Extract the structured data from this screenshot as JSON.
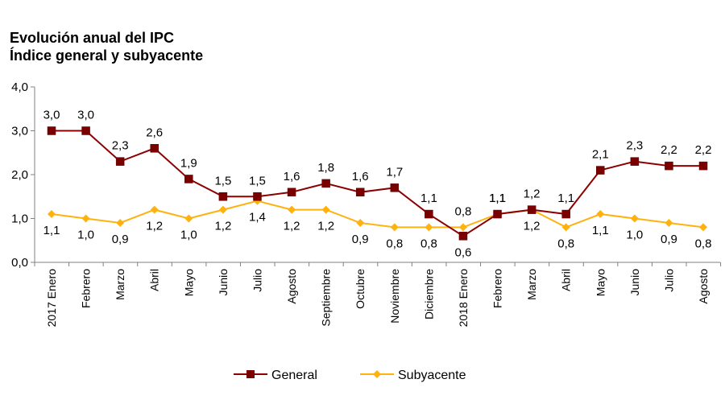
{
  "title": {
    "line1": "Evolución anual del IPC",
    "line2": "Índice general y subyacente"
  },
  "chart_data": {
    "type": "line",
    "title": "Evolución anual del IPC",
    "subtitle": "Índice general y subyacente",
    "xlabel": "",
    "ylabel": "",
    "ylim": [
      0,
      4
    ],
    "yticks": [
      0,
      1,
      2,
      3,
      4
    ],
    "ytick_labels": [
      "0,0",
      "1,0",
      "2,0",
      "3,0",
      "4,0"
    ],
    "grid": false,
    "legend_position": "bottom-center",
    "categories": [
      "2017 Enero",
      "Febrero",
      "Marzo",
      "Abril",
      "Mayo",
      "Junio",
      "Julio",
      "Agosto",
      "Septiembre",
      "Octubre",
      "Noviembre",
      "Diciembre",
      "2018 Enero",
      "Febrero",
      "Marzo",
      "Abril",
      "Mayo",
      "Junio",
      "Julio",
      "Agosto"
    ],
    "series": [
      {
        "name": "General",
        "color": "#8B0000",
        "marker": "square",
        "values": [
          3.0,
          3.0,
          2.3,
          2.6,
          1.9,
          1.5,
          1.5,
          1.6,
          1.8,
          1.6,
          1.7,
          1.1,
          0.6,
          1.1,
          1.2,
          1.1,
          2.1,
          2.3,
          2.2,
          2.2
        ],
        "labels": [
          "3,0",
          "3,0",
          "2,3",
          "2,6",
          "1,9",
          "1,5",
          "1,5",
          "1,6",
          "1,8",
          "1,6",
          "1,7",
          "1,1",
          "0,6",
          "1,1",
          "1,2",
          "1,1",
          "2,1",
          "2,3",
          "2,2",
          "2,2"
        ],
        "label_positions": [
          "above",
          "above",
          "above",
          "above",
          "above",
          "above",
          "above",
          "above",
          "above",
          "above",
          "above",
          "above",
          "below",
          "above",
          "above",
          "above",
          "above",
          "above",
          "above",
          "above"
        ]
      },
      {
        "name": "Subyacente",
        "color": "#FFB20F",
        "marker": "diamond",
        "values": [
          1.1,
          1.0,
          0.9,
          1.2,
          1.0,
          1.2,
          1.4,
          1.2,
          1.2,
          0.9,
          0.8,
          0.8,
          0.8,
          1.1,
          1.2,
          0.8,
          1.1,
          1.0,
          0.9,
          0.8
        ],
        "labels": [
          "1,1",
          "1,0",
          "0,9",
          "1,2",
          "1,0",
          "1,2",
          "1,4",
          "1,2",
          "1,2",
          "0,9",
          "0,8",
          "0,8",
          "0,8",
          "1,1",
          "1,2",
          "0,8",
          "1,1",
          "1,0",
          "0,9",
          "0,8"
        ],
        "label_positions": [
          "below",
          "below",
          "below",
          "below",
          "below",
          "below",
          "below",
          "below",
          "below",
          "below",
          "below",
          "below",
          "above",
          "above",
          "below",
          "below",
          "below",
          "below",
          "below",
          "below"
        ]
      }
    ]
  }
}
